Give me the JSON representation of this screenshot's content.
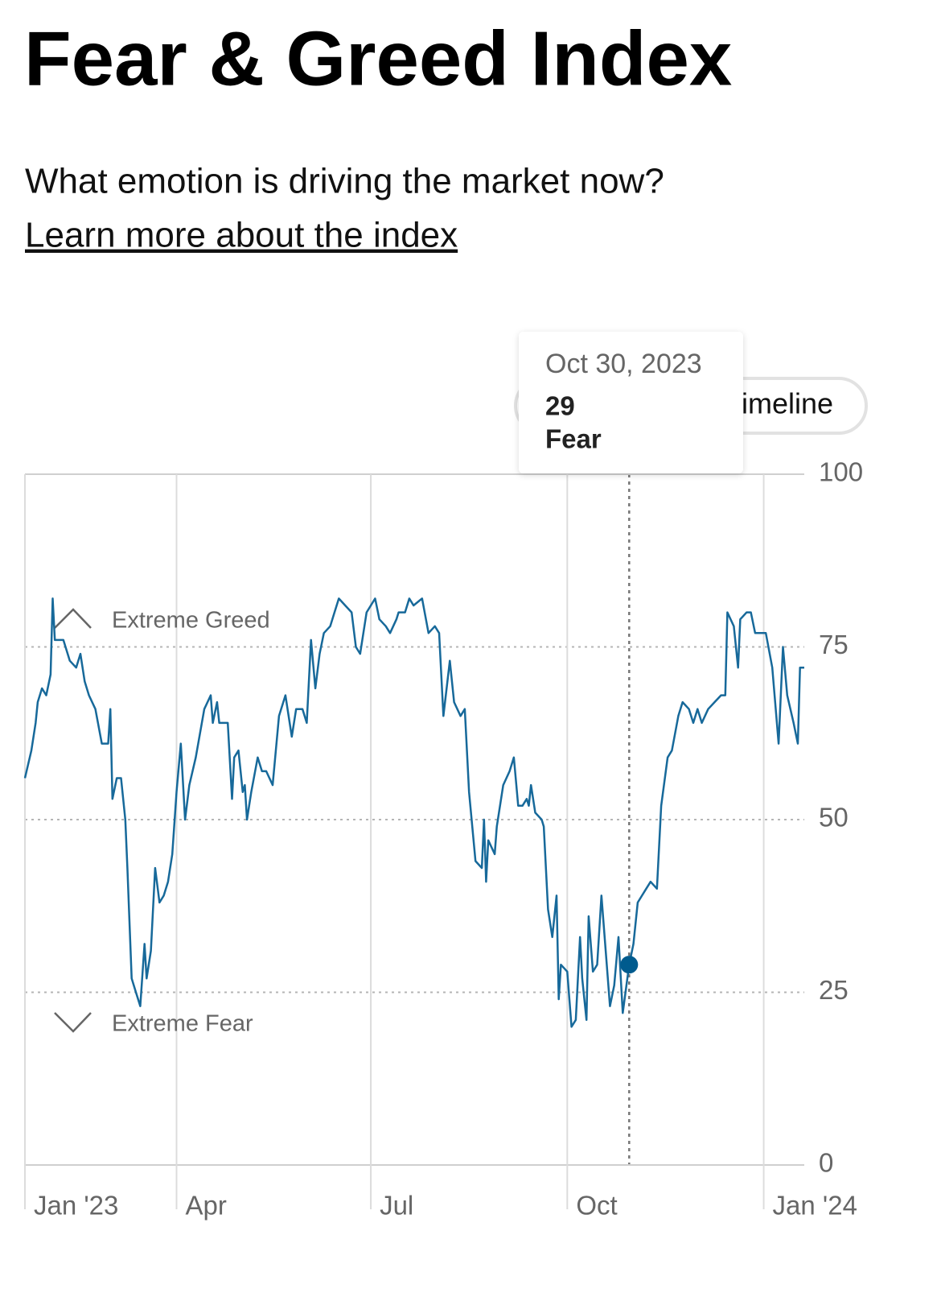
{
  "header": {
    "title": "Fear & Greed Index",
    "subtitle": "What emotion is driving the market now?",
    "link": "Learn more about the index"
  },
  "toggle": {
    "label": "Timeline"
  },
  "chart_data": {
    "type": "line",
    "x": [
      19,
      22,
      24,
      25,
      27,
      29,
      31,
      32,
      33,
      36,
      37,
      40,
      43,
      45,
      47,
      49,
      52,
      55,
      58,
      59,
      60,
      62,
      64,
      66,
      67,
      69,
      71,
      73,
      75,
      76,
      78,
      80,
      82,
      84,
      86,
      88,
      90,
      92,
      94,
      96,
      99,
      103,
      106,
      107,
      109,
      110,
      114,
      116,
      117,
      119,
      121,
      122,
      123,
      125,
      128,
      130,
      132,
      135,
      138,
      141,
      144,
      146,
      149,
      151,
      153,
      155,
      157,
      159,
      162,
      164,
      166,
      169,
      172,
      174,
      176,
      179,
      183,
      185,
      188,
      190,
      193,
      194,
      197,
      199,
      201,
      205,
      208,
      211,
      213,
      215,
      218,
      220,
      223,
      225,
      227,
      230,
      233,
      234,
      235,
      236,
      239,
      240,
      243,
      246,
      248,
      250,
      252,
      254,
      255,
      256,
      258,
      261,
      262,
      264,
      266,
      268,
      269,
      270,
      273,
      275,
      277,
      279,
      280,
      282,
      283,
      285,
      287,
      289,
      291,
      293,
      295,
      297,
      299,
      302,
      304,
      306,
      308,
      310,
      312,
      315,
      317,
      320,
      322,
      325,
      327,
      330,
      332,
      334,
      336,
      339,
      342,
      345,
      347,
      348,
      351,
      353,
      354,
      357,
      359,
      361,
      363,
      366,
      369,
      372,
      374,
      376,
      379,
      381,
      382,
      384
    ],
    "series": [
      {
        "name": "Fear & Greed Index",
        "color": "#17699a",
        "values": [
          56,
          60,
          64,
          67,
          69,
          68,
          71,
          82,
          76,
          76,
          76,
          73,
          72,
          74,
          70,
          68,
          66,
          61,
          61,
          66,
          53,
          56,
          56,
          50,
          43,
          27,
          25,
          23,
          32,
          27,
          31,
          43,
          38,
          39,
          41,
          45,
          54,
          61,
          50,
          55,
          59,
          66,
          68,
          64,
          67,
          64,
          64,
          53,
          59,
          60,
          54,
          55,
          50,
          54,
          59,
          57,
          57,
          55,
          65,
          68,
          62,
          66,
          66,
          64,
          76,
          69,
          74,
          77,
          78,
          80,
          82,
          81,
          80,
          75,
          74,
          80,
          82,
          79,
          78,
          77,
          79,
          80,
          80,
          82,
          81,
          82,
          77,
          78,
          77,
          65,
          73,
          67,
          65,
          66,
          54,
          44,
          43,
          50,
          41,
          47,
          45,
          49,
          55,
          57,
          59,
          52,
          52,
          53,
          52,
          55,
          51,
          50,
          49,
          37,
          33,
          39,
          24,
          29,
          28,
          20,
          21,
          33,
          27,
          21,
          36,
          28,
          29,
          39,
          31,
          23,
          26,
          33,
          22,
          29,
          32,
          38,
          39,
          40,
          41,
          40,
          52,
          59,
          60,
          65,
          67,
          66,
          64,
          66,
          64,
          66,
          67,
          68,
          68,
          80,
          78,
          72,
          79,
          80,
          80,
          77,
          77,
          77,
          72,
          61,
          75,
          68,
          64,
          61,
          72,
          72
        ]
      }
    ],
    "xlim": [
      19,
      384
    ],
    "xticks": [
      {
        "value": 19,
        "label": "Jan '23"
      },
      {
        "value": 90,
        "label": "Apr"
      },
      {
        "value": 181,
        "label": "Jul"
      },
      {
        "value": 273,
        "label": "Oct"
      },
      {
        "value": 365,
        "label": "Jan '24"
      }
    ],
    "ylim": [
      0,
      100
    ],
    "yticks": [
      0,
      25,
      50,
      75,
      100
    ],
    "grid": true,
    "annotations": [
      "Extreme Greed",
      "Extreme Fear"
    ],
    "tooltip": {
      "date": "Oct 30, 2023",
      "value": 29,
      "rating": "Fear"
    }
  }
}
